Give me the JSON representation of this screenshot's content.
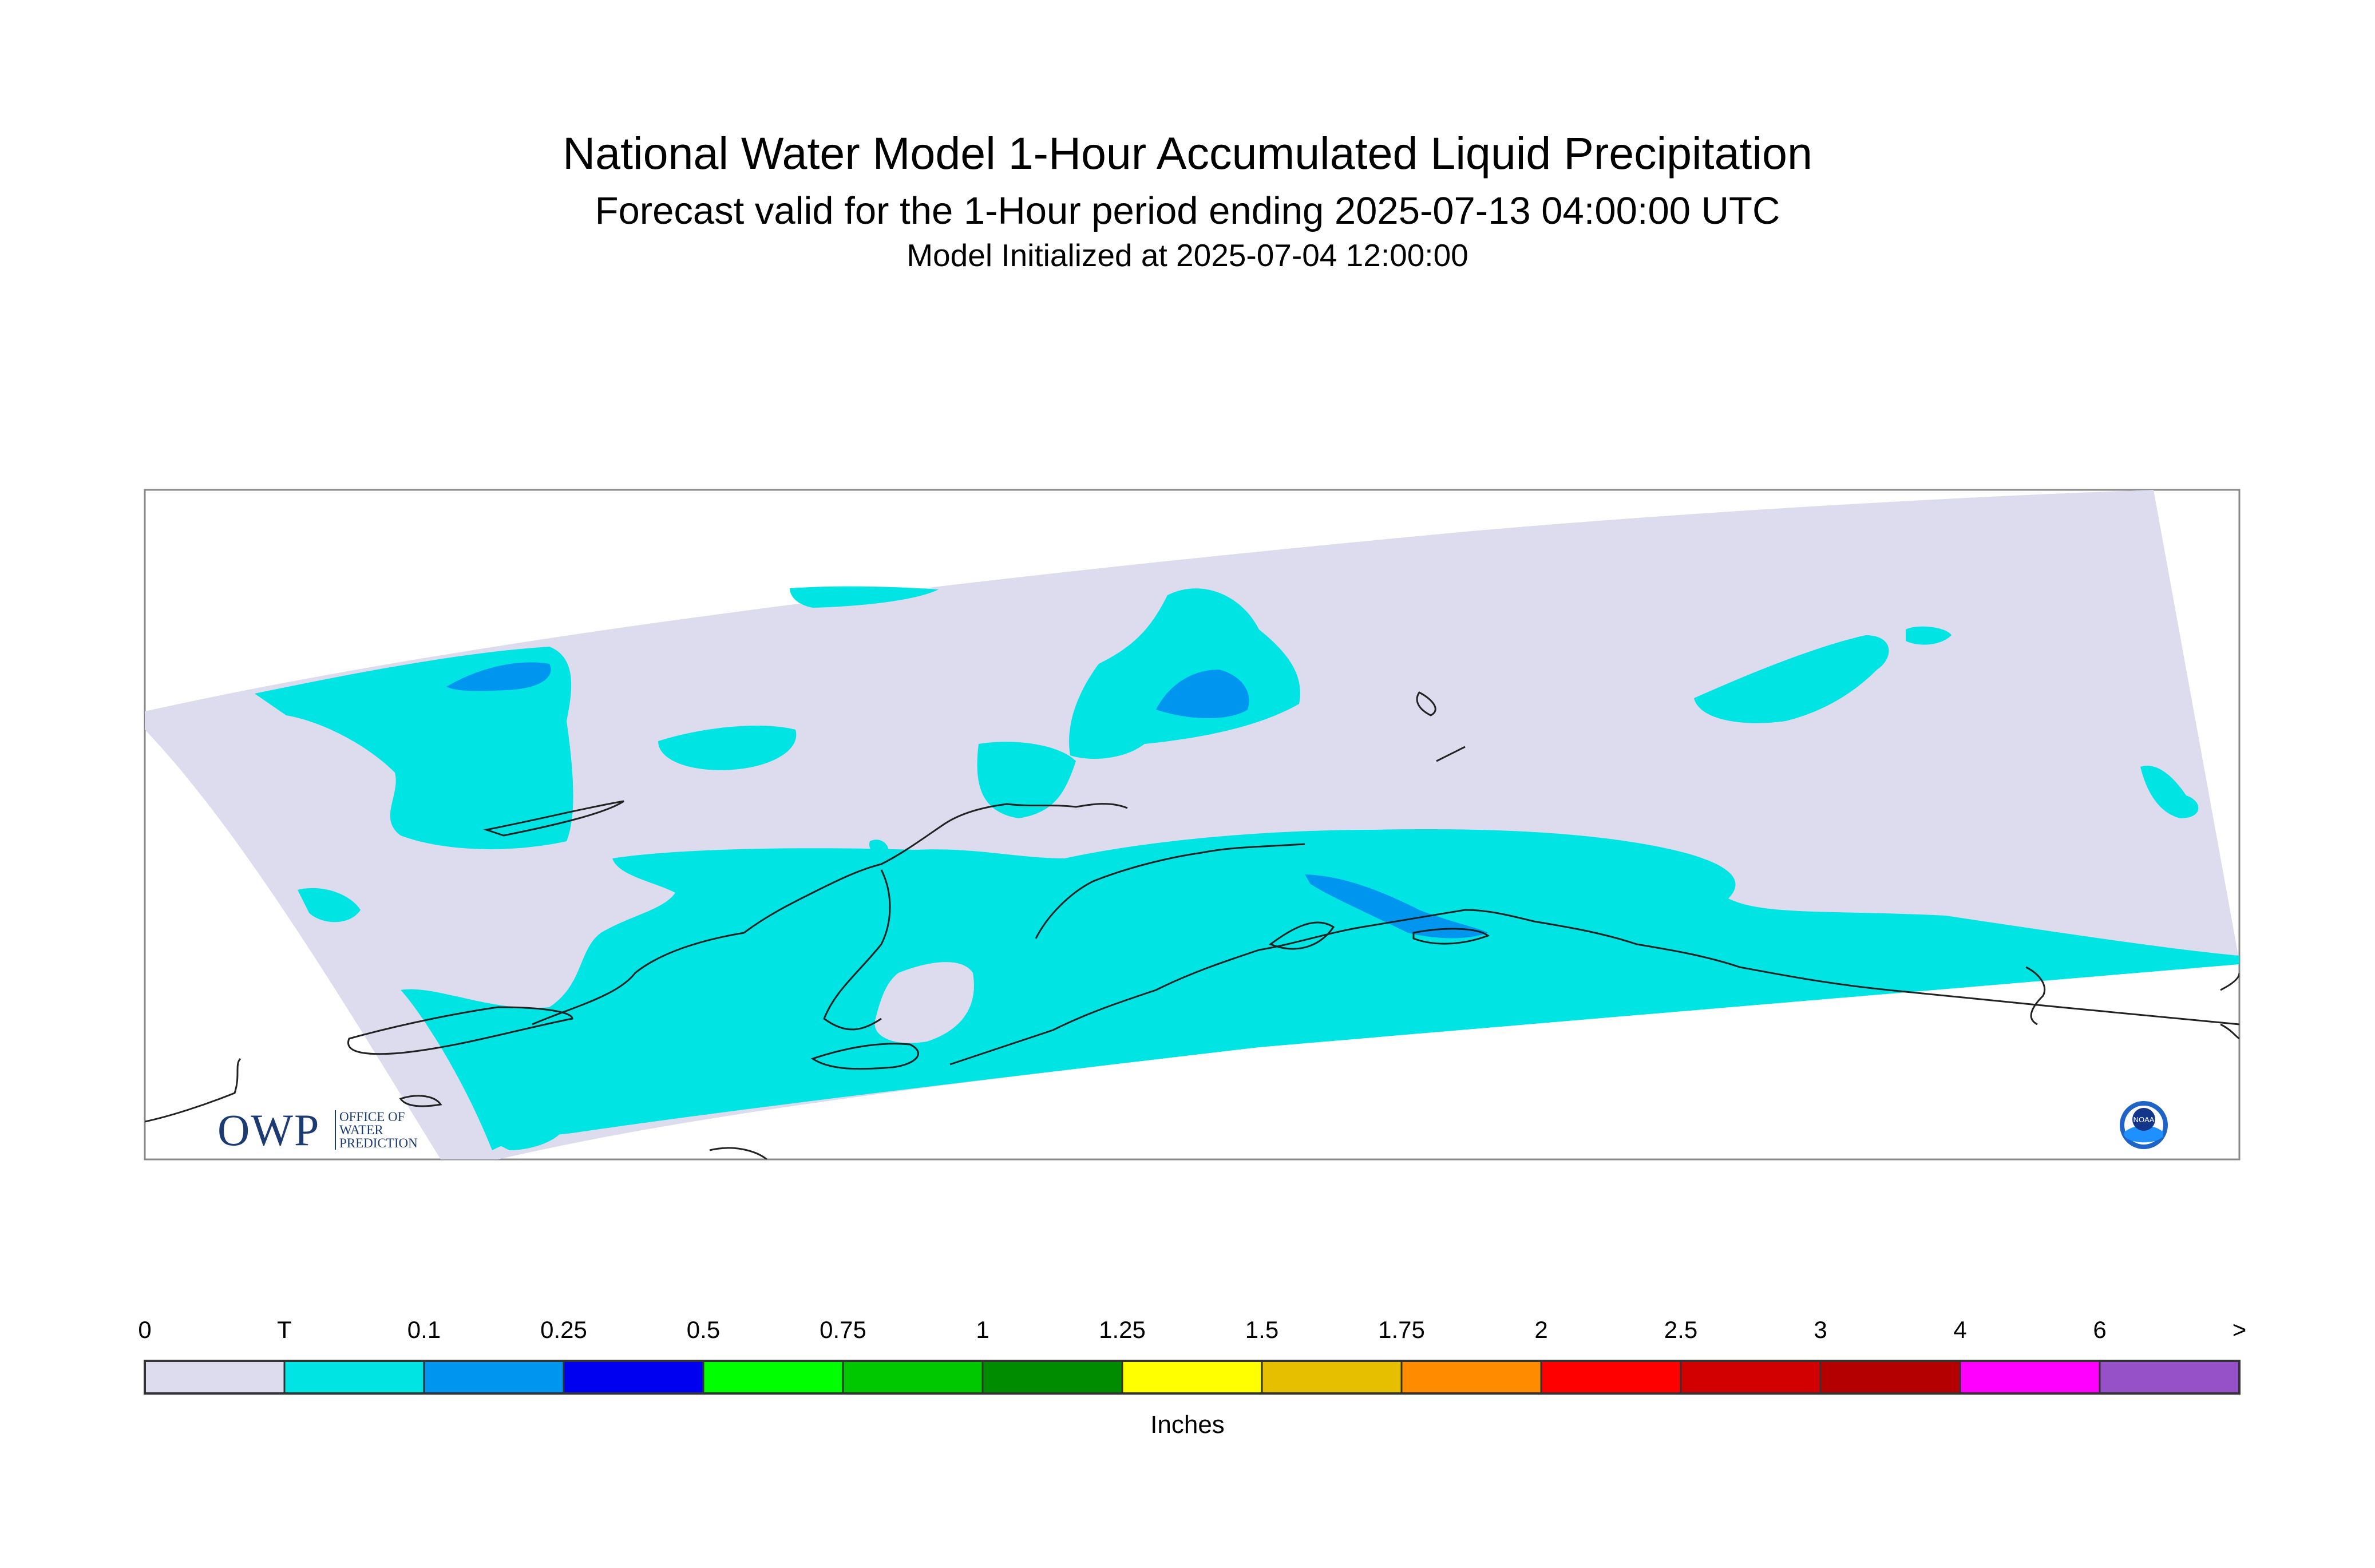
{
  "header": {
    "title": "National Water Model 1-Hour Accumulated Liquid Precipitation",
    "subtitle": "Forecast valid for the 1-Hour period ending 2025-07-13 04:00:00 UTC",
    "init_line": "Model Initialized at 2025-07-04 12:00:00"
  },
  "map": {
    "region": "Southcentral Alaska",
    "domain_fill_color": "#dcdcee",
    "coastline_color": "#222222"
  },
  "legend": {
    "units": "Inches",
    "labels": [
      "0",
      "T",
      "0.1",
      "0.25",
      "0.5",
      "0.75",
      "1",
      "1.25",
      "1.5",
      "1.75",
      "2",
      "2.5",
      "3",
      "4",
      "6",
      ">"
    ],
    "colors": [
      "#dcdcee",
      "#00e4e4",
      "#0096f0",
      "#0000f0",
      "#00ff00",
      "#00c800",
      "#008c00",
      "#ffff00",
      "#e6c000",
      "#ff8c00",
      "#ff0000",
      "#d20000",
      "#b40000",
      "#ff00ff",
      "#9650c8"
    ]
  },
  "logos": {
    "owp": "OWP",
    "owp_small": [
      "OFFICE OF",
      "WATER",
      "PREDICTION"
    ],
    "noaa": "NOAA"
  }
}
